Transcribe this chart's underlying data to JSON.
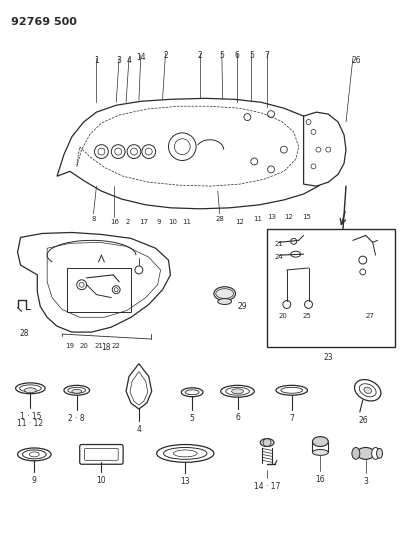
{
  "title": "92769 500",
  "bg_color": "#ffffff",
  "line_color": "#2a2a2a",
  "figsize": [
    4.05,
    5.33
  ],
  "dpi": 100
}
